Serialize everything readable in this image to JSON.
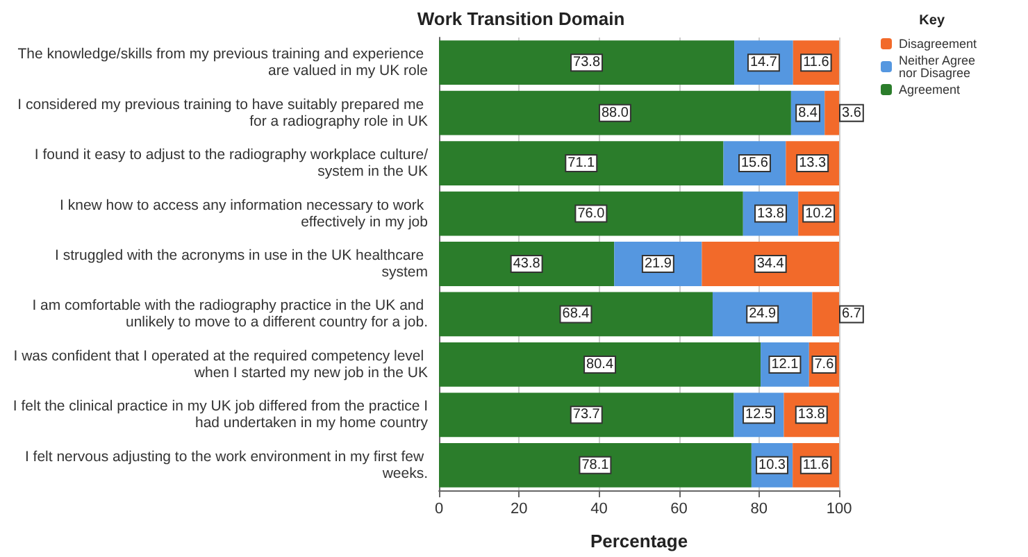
{
  "chart_data": {
    "type": "bar",
    "orientation": "horizontal",
    "stacked": true,
    "title": "Work Transition Domain",
    "xlabel": "Percentage",
    "legend_title": "Key",
    "legend": "top right",
    "grid": "x",
    "categories": [
      "The knowledge/skills from my previous training and experience are valued in my UK role",
      "I considered my previous training to have suitably prepared me for a radiography role in UK",
      "I found it easy to adjust to the radiography workplace culture/system in the UK",
      "I knew how to access any information necessary to work effectively in my job",
      "I struggled with the acronyms in use in the UK healthcare system",
      "I am comfortable with the radiography practice in the UK and unlikely to move to a different country for a job.",
      "I was confident that I operated at the required competency level when I started my new job in the UK",
      "I felt the clinical practice in my UK job differed from the practice I had undertaken in my home country",
      "I felt nervous adjusting to the work environment in my first few weeks."
    ],
    "xlim": [
      0,
      100
    ],
    "xticks": [
      0,
      20,
      40,
      60,
      80,
      100
    ],
    "series": [
      {
        "name": "Agreement",
        "color": "#2b7d2b",
        "values": [
          73.8,
          88.0,
          71.1,
          76.0,
          43.8,
          68.4,
          80.4,
          73.7,
          78.1
        ],
        "value_labels": [
          "73.8",
          "88.0",
          "71.1",
          "76.0",
          "43.8",
          "68.4",
          "80.4",
          "73.7",
          "78.1"
        ]
      },
      {
        "name": "Neither Agree nor Disagree",
        "color": "#5597e0",
        "values": [
          14.7,
          8.4,
          15.6,
          13.8,
          21.9,
          24.9,
          12.1,
          12.5,
          10.3
        ],
        "value_labels": [
          "14.7",
          "8.4",
          "15.6",
          "13.8",
          "21.9",
          "24.9",
          "12.1",
          "12.5",
          "10.3"
        ]
      },
      {
        "name": "Disagreement",
        "color": "#f26a2a",
        "values": [
          11.6,
          3.6,
          13.3,
          10.2,
          34.4,
          6.7,
          7.6,
          13.8,
          11.6
        ],
        "value_labels": [
          "11.6",
          "3.6",
          "13.3",
          "10.2",
          "34.4",
          "6.7",
          "7.6",
          "13.8",
          "11.6"
        ]
      }
    ]
  }
}
